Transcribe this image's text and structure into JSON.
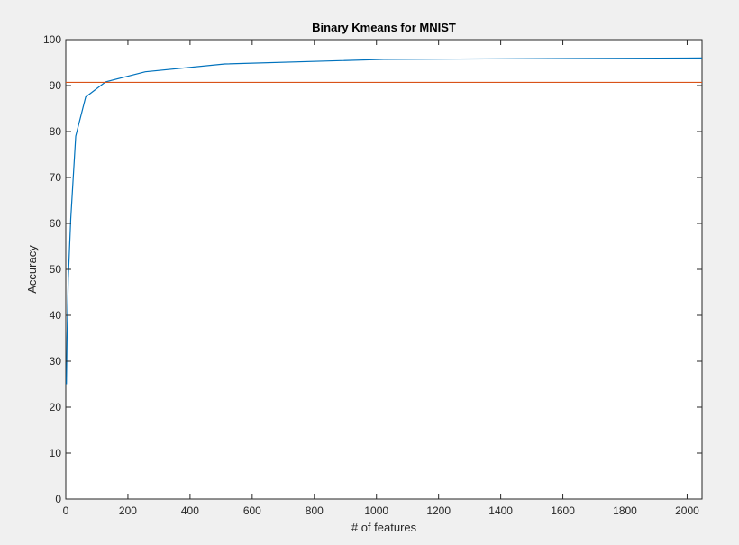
{
  "chart_data": {
    "type": "line",
    "title": "Binary Kmeans for MNIST",
    "xlabel": "# of features",
    "ylabel": "Accuracy",
    "xlim": [
      0,
      2048
    ],
    "ylim": [
      0,
      100
    ],
    "x_ticks": [
      0,
      200,
      400,
      600,
      800,
      1000,
      1200,
      1400,
      1600,
      1800,
      2000
    ],
    "y_ticks": [
      0,
      10,
      20,
      30,
      40,
      50,
      60,
      70,
      80,
      90,
      100
    ],
    "grid": false,
    "legend": "none",
    "series": [
      {
        "color": "#0072bd",
        "x": [
          2,
          4,
          8,
          16,
          32,
          64,
          128,
          256,
          512,
          1024,
          2048
        ],
        "y": [
          25,
          35,
          48,
          61,
          79,
          87.5,
          90.8,
          93.0,
          94.7,
          95.7,
          96.0
        ]
      },
      {
        "color": "#d95319",
        "x": [
          0,
          2048
        ],
        "y": [
          90.7,
          90.7
        ]
      }
    ]
  }
}
